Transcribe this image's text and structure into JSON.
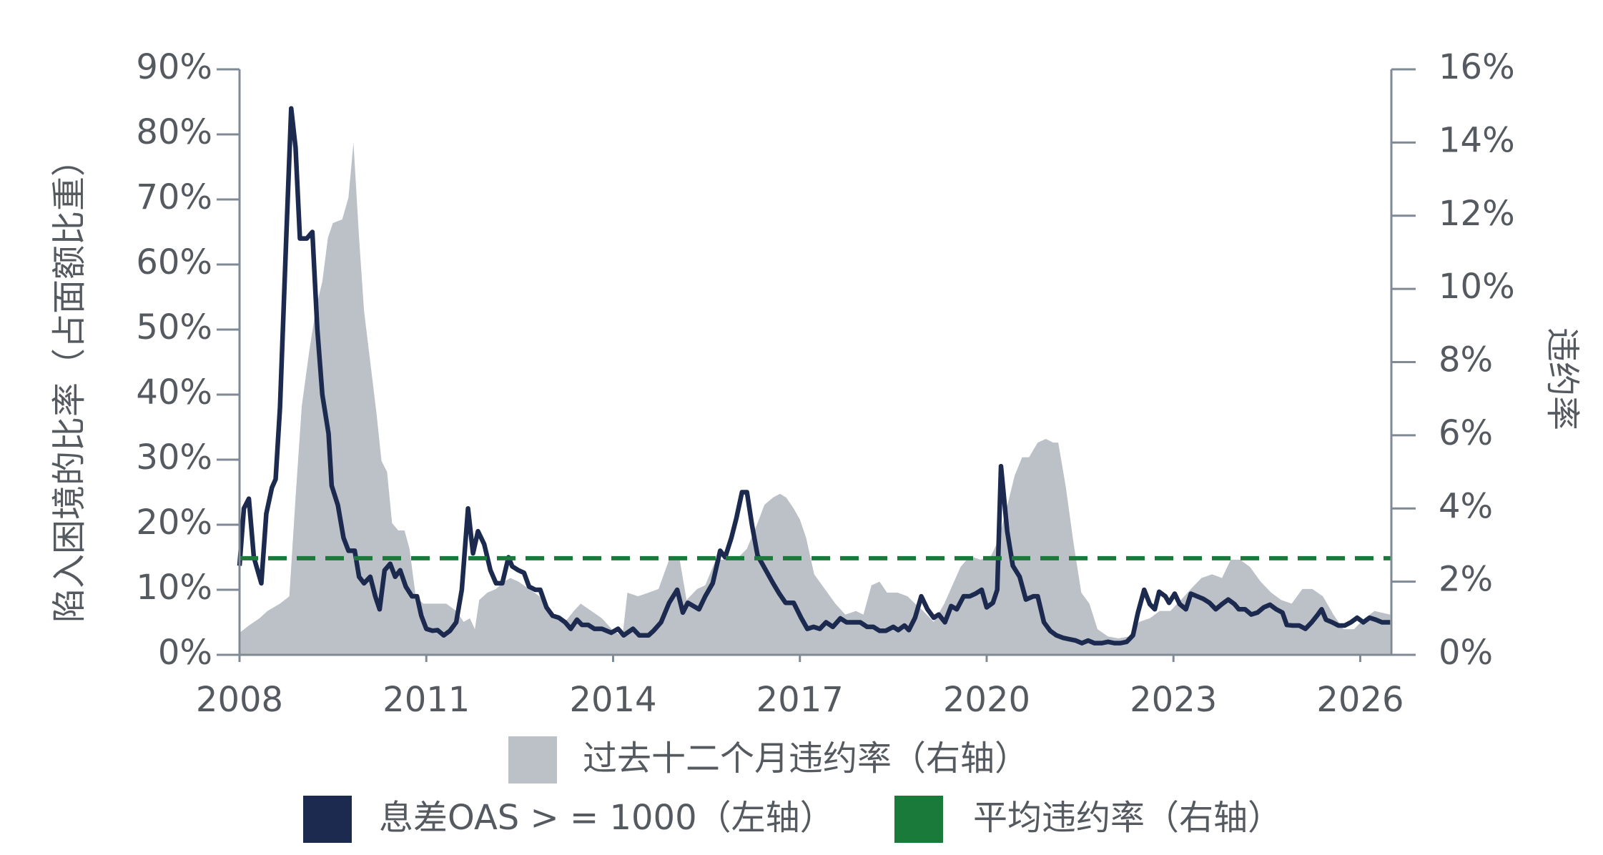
{
  "chart_data": {
    "type": "line",
    "ylabel": "陷入困境的比率（占面额比重）",
    "y2label": "违约率",
    "xlim": [
      2008,
      2026.5
    ],
    "xticks": [
      2008,
      2011,
      2014,
      2017,
      2020,
      2023,
      2026
    ],
    "ylim": [
      0,
      90
    ],
    "yticks": [
      {
        "value": 0,
        "label": "0%"
      },
      {
        "value": 10,
        "label": "10%"
      },
      {
        "value": 20,
        "label": "20%"
      },
      {
        "value": 30,
        "label": "30%"
      },
      {
        "value": 40,
        "label": "40%"
      },
      {
        "value": 50,
        "label": "50%"
      },
      {
        "value": 60,
        "label": "60%"
      },
      {
        "value": 70,
        "label": "70%"
      },
      {
        "value": 80,
        "label": "80%"
      },
      {
        "value": 90,
        "label": "90%"
      }
    ],
    "y2lim": [
      0,
      16
    ],
    "y2ticks": [
      {
        "value": 0,
        "label": "0%"
      },
      {
        "value": 2,
        "label": "2%"
      },
      {
        "value": 4,
        "label": "4%"
      },
      {
        "value": 6,
        "label": "6%"
      },
      {
        "value": 8,
        "label": "8%"
      },
      {
        "value": 10,
        "label": "10%"
      },
      {
        "value": 12,
        "label": "12%"
      },
      {
        "value": 14,
        "label": "14%"
      },
      {
        "value": 16,
        "label": "16%"
      }
    ],
    "series": [
      {
        "name": "过去十二个月违约率（右轴）",
        "type": "area",
        "axis": "y2",
        "color": "#bcc1c8",
        "x": [
          2008.0,
          2008.15,
          2008.32,
          2008.45,
          2008.65,
          2008.8,
          2008.9,
          2009.0,
          2009.12,
          2009.23,
          2009.33,
          2009.42,
          2009.5,
          2009.65,
          2009.75,
          2009.83,
          2009.92,
          2010.0,
          2010.1,
          2010.2,
          2010.28,
          2010.37,
          2010.45,
          2010.55,
          2010.65,
          2010.73,
          2010.83,
          2010.95,
          2011.15,
          2011.32,
          2011.48,
          2011.6,
          2011.7,
          2011.78,
          2011.85,
          2011.98,
          2012.12,
          2012.25,
          2012.35,
          2012.48,
          2012.65,
          2012.82,
          2013.02,
          2013.23,
          2013.37,
          2013.48,
          2013.65,
          2013.82,
          2013.98,
          2014.15,
          2014.23,
          2014.4,
          2014.57,
          2014.73,
          2014.9,
          2015.07,
          2015.18,
          2015.35,
          2015.48,
          2015.65,
          2015.82,
          2015.98,
          2016.15,
          2016.32,
          2016.43,
          2016.57,
          2016.68,
          2016.78,
          2016.9,
          2017.0,
          2017.1,
          2017.23,
          2017.4,
          2017.57,
          2017.73,
          2017.9,
          2018.02,
          2018.15,
          2018.28,
          2018.4,
          2018.57,
          2018.73,
          2018.85,
          2018.98,
          2019.15,
          2019.32,
          2019.45,
          2019.58,
          2019.73,
          2019.9,
          2020.07,
          2020.18,
          2020.32,
          2020.45,
          2020.57,
          2020.68,
          2020.82,
          2020.95,
          2021.07,
          2021.15,
          2021.27,
          2021.4,
          2021.52,
          2021.65,
          2021.78,
          2021.95,
          2022.12,
          2022.28,
          2022.45,
          2022.62,
          2022.78,
          2022.95,
          2023.12,
          2023.28,
          2023.45,
          2023.62,
          2023.78,
          2023.92,
          2024.07,
          2024.23,
          2024.4,
          2024.57,
          2024.73,
          2024.9,
          2025.07,
          2025.23,
          2025.4,
          2025.57,
          2025.73,
          2025.9,
          2026.07,
          2026.23,
          2026.48
        ],
        "values": [
          0.6,
          0.8,
          1,
          1.2,
          1.4,
          1.6,
          4.3,
          6.8,
          8.3,
          9.5,
          10.2,
          11.4,
          11.8,
          11.9,
          12.5,
          14,
          11.4,
          9.4,
          8,
          6.6,
          5.3,
          5,
          3.6,
          3.4,
          3.4,
          2.9,
          1.6,
          1.4,
          1.4,
          1.4,
          1.2,
          0.9,
          1,
          0.7,
          1.5,
          1.7,
          1.8,
          2,
          2.1,
          2,
          1.8,
          1.6,
          1,
          0.9,
          1.2,
          1.4,
          1.2,
          1,
          0.7,
          0.5,
          1.7,
          1.6,
          1.7,
          1.8,
          2.6,
          2.6,
          1.5,
          1.8,
          1.9,
          2.6,
          2.6,
          2.6,
          2.9,
          3.6,
          4.1,
          4.3,
          4.4,
          4.3,
          4,
          3.7,
          3.2,
          2.2,
          1.8,
          1.4,
          1.1,
          1.2,
          1.1,
          1.9,
          2,
          1.7,
          1.7,
          1.6,
          1.4,
          1.2,
          0.9,
          1.4,
          1.9,
          2.4,
          2.7,
          2.6,
          2.7,
          3.1,
          4,
          4.9,
          5.4,
          5.4,
          5.8,
          5.9,
          5.8,
          5.8,
          4.6,
          3,
          1.7,
          1.4,
          0.7,
          0.5,
          0.45,
          0.5,
          0.9,
          1,
          1.2,
          1.2,
          1.5,
          1.8,
          2.1,
          2.2,
          2.1,
          2.6,
          2.6,
          2.4,
          2,
          1.7,
          1.5,
          1.4,
          1.8,
          1.8,
          1.6,
          1.1,
          0.7,
          0.7,
          1,
          1.2,
          1.1
        ]
      },
      {
        "name": "息差OAS > = 1000（左轴）",
        "type": "line",
        "axis": "y",
        "color": "#1b2a4e",
        "x": [
          2008.0,
          2008.07,
          2008.15,
          2008.23,
          2008.35,
          2008.43,
          2008.52,
          2008.58,
          2008.65,
          2008.75,
          2008.83,
          2008.9,
          2008.97,
          2009.08,
          2009.17,
          2009.25,
          2009.33,
          2009.43,
          2009.48,
          2009.58,
          2009.67,
          2009.75,
          2009.85,
          2009.92,
          2010.0,
          2010.1,
          2010.18,
          2010.25,
          2010.33,
          2010.42,
          2010.5,
          2010.58,
          2010.67,
          2010.77,
          2010.85,
          2010.92,
          2011.0,
          2011.1,
          2011.18,
          2011.28,
          2011.38,
          2011.48,
          2011.57,
          2011.67,
          2011.75,
          2011.83,
          2011.93,
          2012.03,
          2012.12,
          2012.22,
          2012.32,
          2012.38,
          2012.48,
          2012.57,
          2012.65,
          2012.75,
          2012.83,
          2012.93,
          2013.03,
          2013.13,
          2013.23,
          2013.32,
          2013.42,
          2013.5,
          2013.6,
          2013.7,
          2013.82,
          2013.97,
          2014.08,
          2014.17,
          2014.32,
          2014.42,
          2014.57,
          2014.65,
          2014.77,
          2014.9,
          2015.03,
          2015.12,
          2015.2,
          2015.38,
          2015.48,
          2015.6,
          2015.72,
          2015.8,
          2015.9,
          2015.98,
          2016.07,
          2016.15,
          2016.23,
          2016.32,
          2016.43,
          2016.57,
          2016.67,
          2016.77,
          2016.9,
          2017.02,
          2017.12,
          2017.22,
          2017.32,
          2017.42,
          2017.53,
          2017.65,
          2017.75,
          2017.87,
          2017.97,
          2018.08,
          2018.18,
          2018.28,
          2018.38,
          2018.5,
          2018.58,
          2018.68,
          2018.75,
          2018.85,
          2018.95,
          2019.05,
          2019.15,
          2019.23,
          2019.33,
          2019.43,
          2019.52,
          2019.63,
          2019.73,
          2019.82,
          2019.92,
          2020.0,
          2020.1,
          2020.17,
          2020.23,
          2020.33,
          2020.42,
          2020.53,
          2020.63,
          2020.75,
          2020.82,
          2020.92,
          2021.02,
          2021.12,
          2021.23,
          2021.33,
          2021.43,
          2021.53,
          2021.63,
          2021.73,
          2021.85,
          2021.95,
          2022.05,
          2022.15,
          2022.25,
          2022.35,
          2022.43,
          2022.53,
          2022.62,
          2022.7,
          2022.77,
          2022.87,
          2022.93,
          2023.02,
          2023.1,
          2023.2,
          2023.28,
          2023.38,
          2023.48,
          2023.58,
          2023.68,
          2023.78,
          2023.88,
          2023.98,
          2024.05,
          2024.15,
          2024.25,
          2024.35,
          2024.45,
          2024.55,
          2024.65,
          2024.75,
          2024.82,
          2024.92,
          2025.02,
          2025.12,
          2025.22,
          2025.32,
          2025.38,
          2025.45,
          2025.55,
          2025.65,
          2025.75,
          2025.85,
          2025.95,
          2026.05,
          2026.15,
          2026.25,
          2026.35,
          2026.48
        ],
        "values": [
          13.7,
          22.5,
          24,
          15,
          11,
          21.7,
          25.7,
          27,
          38,
          64,
          84,
          78,
          64,
          64,
          65,
          50,
          40,
          34,
          26,
          23,
          18,
          16,
          16,
          12,
          11,
          12,
          9,
          7,
          13,
          14,
          12,
          13,
          10.5,
          9,
          9,
          6,
          4,
          3.7,
          3.8,
          3,
          3.7,
          5,
          10,
          22.5,
          15.6,
          19,
          17,
          13,
          11,
          11,
          15,
          13.6,
          13,
          12.6,
          10.5,
          10,
          10,
          7.3,
          6,
          5.7,
          5,
          4,
          5.4,
          4.6,
          4.6,
          4,
          4,
          3.4,
          4,
          3,
          4,
          3,
          3,
          3.7,
          5,
          8,
          10,
          6.5,
          8,
          7,
          9,
          11,
          16,
          15,
          18,
          21,
          25,
          25,
          20,
          15.3,
          13.4,
          11,
          9.4,
          8,
          8,
          5.7,
          4,
          4.3,
          4,
          5,
          4.3,
          5.6,
          5,
          5,
          5,
          4.3,
          4.3,
          3.7,
          3.7,
          4.3,
          3.8,
          4.5,
          3.8,
          5.7,
          9,
          7,
          5.7,
          6.2,
          5,
          7.5,
          7,
          9,
          9,
          9.4,
          10,
          7.3,
          8,
          10,
          29,
          19,
          13.7,
          12,
          8.5,
          9,
          9,
          5,
          3.7,
          3,
          2.6,
          2.4,
          2.2,
          1.8,
          2.2,
          1.8,
          1.8,
          2,
          1.8,
          1.8,
          2,
          3,
          6.5,
          10,
          7.8,
          7,
          9.7,
          9,
          8,
          9.4,
          7.8,
          7,
          9.4,
          9,
          8.6,
          8,
          7,
          7.8,
          8.5,
          7.8,
          7,
          7,
          6.2,
          6.5,
          7.3,
          7.7,
          7,
          6.5,
          4.6,
          4.5,
          4.5,
          4,
          5,
          6.2,
          7,
          5.4,
          5,
          4.5,
          4.5,
          5,
          5.7,
          5,
          5.7,
          5.4,
          5,
          5
        ]
      },
      {
        "name": "平均违约率（右轴）",
        "type": "line",
        "style": "dashed",
        "axis": "y2",
        "color": "#1a7a3a",
        "x": [
          2008,
          2026.5
        ],
        "values": [
          2.64,
          2.64
        ]
      }
    ]
  }
}
